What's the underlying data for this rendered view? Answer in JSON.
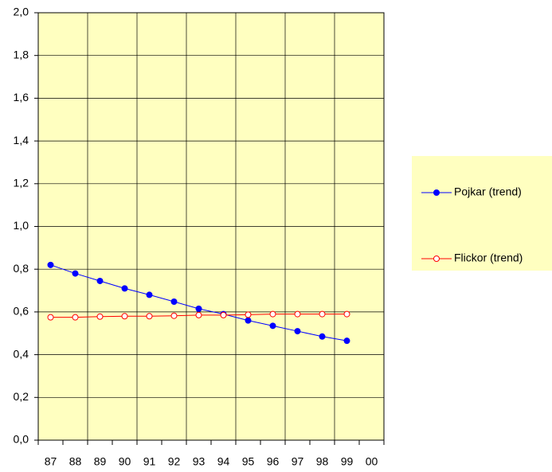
{
  "chart_data": {
    "type": "line",
    "categories": [
      "87",
      "88",
      "89",
      "90",
      "91",
      "92",
      "93",
      "94",
      "95",
      "96",
      "97",
      "98",
      "99",
      "00"
    ],
    "series": [
      {
        "name": "Pojkar (trend)",
        "color": "#0000ff",
        "marker_fill": "#0000ff",
        "values": [
          0.82,
          0.78,
          0.745,
          0.71,
          0.68,
          0.648,
          0.615,
          0.59,
          0.56,
          0.535,
          0.51,
          0.485,
          0.465,
          null
        ]
      },
      {
        "name": "Flickor (trend)",
        "color": "#ff0000",
        "marker_fill": "#ffffff",
        "values": [
          0.575,
          0.575,
          0.578,
          0.58,
          0.58,
          0.582,
          0.585,
          0.585,
          0.587,
          0.59,
          0.59,
          0.59,
          0.59,
          null
        ]
      }
    ],
    "ylim": [
      0,
      2
    ],
    "yticks": [
      {
        "value": 0,
        "label": "0,0"
      },
      {
        "value": 0.2,
        "label": "0,2"
      },
      {
        "value": 0.4,
        "label": "0,4"
      },
      {
        "value": 0.6,
        "label": "0,6"
      },
      {
        "value": 0.8,
        "label": "0,8"
      },
      {
        "value": 1,
        "label": "1,0"
      },
      {
        "value": 1.2,
        "label": "1,2"
      },
      {
        "value": 1.4,
        "label": "1,4"
      },
      {
        "value": 1.6,
        "label": "1,6"
      },
      {
        "value": 1.8,
        "label": "1,8"
      },
      {
        "value": 2,
        "label": "2,0"
      }
    ],
    "grid": true,
    "background": "#ffffc0",
    "legend": "right"
  }
}
